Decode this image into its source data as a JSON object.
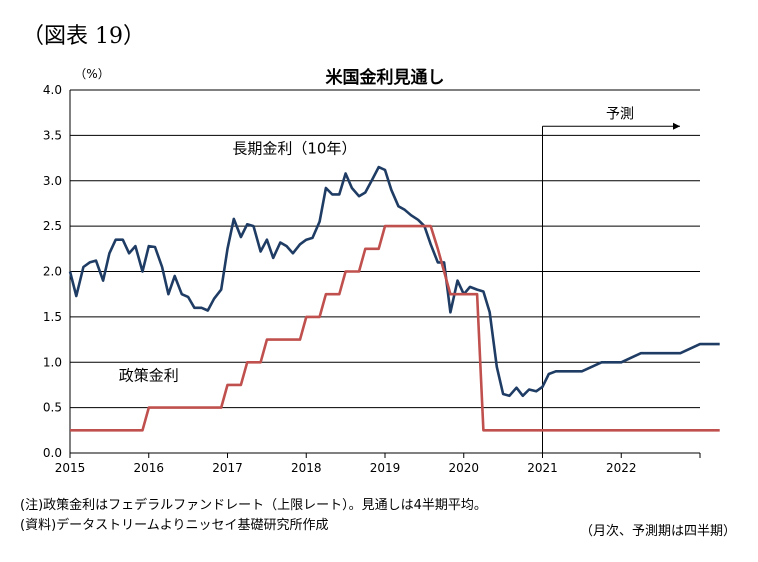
{
  "figure_label": "（図表 19）",
  "notes": {
    "note1": "(注)政策金利はフェデラルファンドレート（上限レート）。見通しは4半期平均。",
    "note2": "(資料)データストリームよりニッセイ基礎研究所作成",
    "note3": "（月次、予測期は四半期）"
  },
  "chart_data": {
    "type": "line",
    "title": "米国金利見通し",
    "ylabel": "（%）",
    "xlabel": "",
    "ylim": [
      0,
      4
    ],
    "yticks": [
      "0.0",
      "0.5",
      "1.0",
      "1.5",
      "2.0",
      "2.5",
      "3.0",
      "3.5",
      "4.0"
    ],
    "xlim": [
      2015,
      2023
    ],
    "xticks": [
      "2015",
      "2016",
      "2017",
      "2018",
      "2019",
      "2020",
      "2021",
      "2022"
    ],
    "grid": true,
    "forecast": {
      "start": 2021,
      "label": "予測"
    },
    "series": [
      {
        "name": "長期金利（10年）",
        "color": "#1f3c64",
        "points": [
          [
            2015.0,
            2.0
          ],
          [
            2015.08,
            1.73
          ],
          [
            2015.17,
            2.05
          ],
          [
            2015.25,
            2.1
          ],
          [
            2015.33,
            2.12
          ],
          [
            2015.42,
            1.9
          ],
          [
            2015.5,
            2.2
          ],
          [
            2015.58,
            2.35
          ],
          [
            2015.67,
            2.35
          ],
          [
            2015.75,
            2.2
          ],
          [
            2015.83,
            2.28
          ],
          [
            2015.92,
            2.0
          ],
          [
            2016.0,
            2.28
          ],
          [
            2016.08,
            2.27
          ],
          [
            2016.17,
            2.05
          ],
          [
            2016.25,
            1.75
          ],
          [
            2016.33,
            1.95
          ],
          [
            2016.42,
            1.75
          ],
          [
            2016.5,
            1.72
          ],
          [
            2016.58,
            1.6
          ],
          [
            2016.67,
            1.6
          ],
          [
            2016.75,
            1.57
          ],
          [
            2016.83,
            1.7
          ],
          [
            2016.92,
            1.8
          ],
          [
            2017.0,
            2.25
          ],
          [
            2017.08,
            2.58
          ],
          [
            2017.17,
            2.38
          ],
          [
            2017.25,
            2.52
          ],
          [
            2017.33,
            2.5
          ],
          [
            2017.42,
            2.22
          ],
          [
            2017.5,
            2.35
          ],
          [
            2017.58,
            2.15
          ],
          [
            2017.67,
            2.32
          ],
          [
            2017.75,
            2.28
          ],
          [
            2017.83,
            2.2
          ],
          [
            2017.92,
            2.3
          ],
          [
            2018.0,
            2.35
          ],
          [
            2018.08,
            2.37
          ],
          [
            2018.17,
            2.55
          ],
          [
            2018.25,
            2.92
          ],
          [
            2018.33,
            2.85
          ],
          [
            2018.42,
            2.85
          ],
          [
            2018.5,
            3.08
          ],
          [
            2018.58,
            2.92
          ],
          [
            2018.67,
            2.83
          ],
          [
            2018.75,
            2.87
          ],
          [
            2018.83,
            3.0
          ],
          [
            2018.92,
            3.15
          ],
          [
            2019.0,
            3.12
          ],
          [
            2019.08,
            2.9
          ],
          [
            2019.17,
            2.72
          ],
          [
            2019.25,
            2.68
          ],
          [
            2019.33,
            2.62
          ],
          [
            2019.42,
            2.57
          ],
          [
            2019.5,
            2.5
          ],
          [
            2019.58,
            2.3
          ],
          [
            2019.67,
            2.1
          ],
          [
            2019.75,
            2.1
          ],
          [
            2019.83,
            1.55
          ],
          [
            2019.92,
            1.9
          ],
          [
            2020.0,
            1.75
          ],
          [
            2020.08,
            1.83
          ],
          [
            2020.17,
            1.8
          ],
          [
            2020.25,
            1.78
          ],
          [
            2020.33,
            1.55
          ],
          [
            2020.42,
            0.95
          ],
          [
            2020.5,
            0.65
          ],
          [
            2020.58,
            0.63
          ],
          [
            2020.67,
            0.72
          ],
          [
            2020.75,
            0.63
          ],
          [
            2020.83,
            0.7
          ],
          [
            2020.92,
            0.68
          ],
          [
            2021.0,
            0.73
          ],
          [
            2021.08,
            0.87
          ],
          [
            2021.17,
            0.9
          ],
          [
            2021.25,
            0.9
          ],
          [
            2021.5,
            0.9
          ],
          [
            2021.75,
            1.0
          ],
          [
            2022.0,
            1.0
          ],
          [
            2022.25,
            1.1
          ],
          [
            2022.5,
            1.1
          ],
          [
            2022.75,
            1.1
          ],
          [
            2023.0,
            1.2
          ],
          [
            2023.25,
            1.2
          ]
        ]
      },
      {
        "name": "政策金利",
        "color": "#c0504d",
        "points": [
          [
            2015.0,
            0.25
          ],
          [
            2015.92,
            0.25
          ],
          [
            2016.0,
            0.5
          ],
          [
            2016.92,
            0.5
          ],
          [
            2017.0,
            0.75
          ],
          [
            2017.17,
            0.75
          ],
          [
            2017.25,
            1.0
          ],
          [
            2017.42,
            1.0
          ],
          [
            2017.5,
            1.25
          ],
          [
            2017.92,
            1.25
          ],
          [
            2018.0,
            1.5
          ],
          [
            2018.17,
            1.5
          ],
          [
            2018.25,
            1.75
          ],
          [
            2018.42,
            1.75
          ],
          [
            2018.5,
            2.0
          ],
          [
            2018.67,
            2.0
          ],
          [
            2018.75,
            2.25
          ],
          [
            2018.92,
            2.25
          ],
          [
            2019.0,
            2.5
          ],
          [
            2019.58,
            2.5
          ],
          [
            2019.67,
            2.25
          ],
          [
            2019.75,
            2.0
          ],
          [
            2019.83,
            1.75
          ],
          [
            2020.17,
            1.75
          ],
          [
            2020.25,
            0.25
          ],
          [
            2023.25,
            0.25
          ]
        ]
      }
    ],
    "annotations": [
      {
        "text": "長期金利（10年）",
        "at": [
          2017.85,
          3.3
        ]
      },
      {
        "text": "政策金利",
        "at": [
          2016.0,
          0.8
        ]
      }
    ]
  }
}
